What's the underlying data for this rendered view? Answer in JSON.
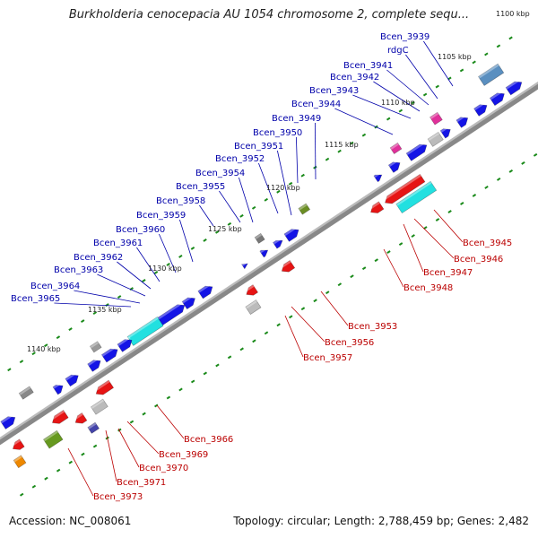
{
  "title": "Burkholderia cenocepacia AU 1054 chromosome 2, complete sequ...",
  "footer": {
    "accession": "Accession: NC_008061",
    "stats": "Topology: circular; Length: 2,788,459 bp; Genes: 2,482"
  },
  "colors": {
    "forward_gene": "#1414e6",
    "reverse_gene": "#e61414",
    "rRNA": "#22e0e0",
    "forward_label": "#0000aa",
    "reverse_label": "#bb0000",
    "backbone": "#888888",
    "tick": "#1a8a1a"
  },
  "ticks": [
    {
      "label": "1100 kbp"
    },
    {
      "label": "1105 kbp"
    },
    {
      "label": "1110 kbp"
    },
    {
      "label": "1115 kbp"
    },
    {
      "label": "1120 kbp"
    },
    {
      "label": "1125 kbp"
    },
    {
      "label": "1130 kbp"
    },
    {
      "label": "1135 kbp"
    },
    {
      "label": "1140 kbp"
    }
  ],
  "forward_labels": [
    "Bcen_3939",
    "rdgC",
    "Bcen_3941",
    "Bcen_3942",
    "Bcen_3943",
    "Bcen_3944",
    "Bcen_3949",
    "Bcen_3950",
    "Bcen_3951",
    "Bcen_3952",
    "Bcen_3954",
    "Bcen_3955",
    "Bcen_3958",
    "Bcen_3959",
    "Bcen_3960",
    "Bcen_3961",
    "Bcen_3962",
    "Bcen_3963",
    "Bcen_3964",
    "Bcen_3965"
  ],
  "reverse_labels": [
    "Bcen_3945",
    "Bcen_3946",
    "Bcen_3947",
    "Bcen_3948",
    "Bcen_3953",
    "Bcen_3956",
    "Bcen_3957",
    "Bcen_3966",
    "Bcen_3969",
    "Bcen_3970",
    "Bcen_3971",
    "Bcen_3973"
  ]
}
